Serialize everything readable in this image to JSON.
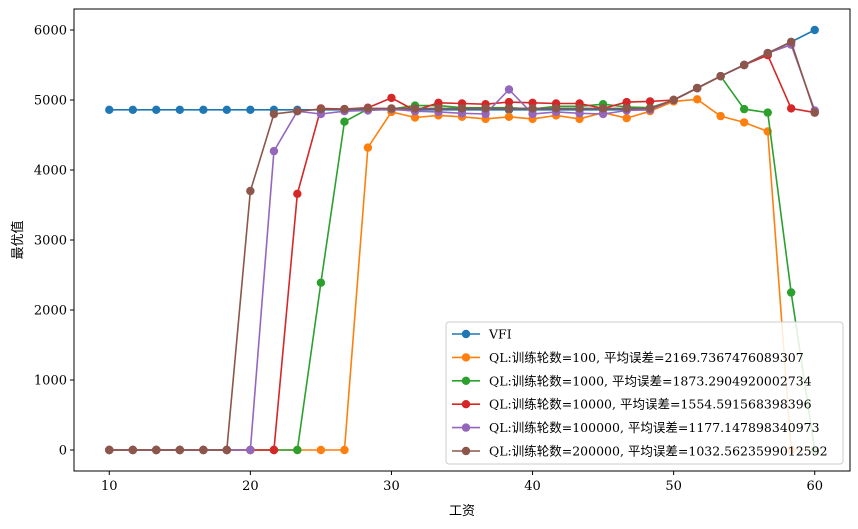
{
  "chart_data": {
    "type": "line",
    "xlabel": "工资",
    "ylabel": "最优值",
    "xlim": [
      7.5,
      62.5
    ],
    "ylim": [
      -300,
      6300
    ],
    "xticks": [
      10,
      20,
      30,
      40,
      50,
      60
    ],
    "yticks": [
      0,
      1000,
      2000,
      3000,
      4000,
      5000,
      6000
    ],
    "grid": false,
    "legend_position": "lower right",
    "x": [
      10,
      11.67,
      13.33,
      15,
      16.67,
      18.33,
      20,
      21.67,
      23.33,
      25,
      26.67,
      28.33,
      30,
      31.67,
      33.33,
      35,
      36.67,
      38.33,
      40,
      41.67,
      43.33,
      45,
      46.67,
      48.33,
      50,
      51.67,
      53.33,
      55,
      56.67,
      58.33,
      60
    ],
    "series": [
      {
        "name": "VFI",
        "color": "#1f77b4",
        "values": [
          4860,
          4860,
          4860,
          4860,
          4860,
          4860,
          4860,
          4860,
          4860,
          4860,
          4860,
          4860,
          4860,
          4860,
          4860,
          4860,
          4860,
          4860,
          4860,
          4860,
          4860,
          4860,
          4860,
          4860,
          5000,
          5170,
          5340,
          5500,
          5670,
          5830,
          6000
        ]
      },
      {
        "name": "QL:训练轮数=100, 平均误差=2169.7367476089307",
        "color": "#ff7f0e",
        "values": [
          0,
          0,
          0,
          0,
          0,
          0,
          0,
          0,
          0,
          0,
          0,
          4320,
          4830,
          4750,
          4780,
          4760,
          4730,
          4760,
          4730,
          4780,
          4730,
          4820,
          4740,
          4840,
          4980,
          5010,
          4770,
          4680,
          4550,
          0,
          0
        ]
      },
      {
        "name": "QL:训练轮数=1000, 平均误差=1873.2904920002734",
        "color": "#2ca02c",
        "values": [
          0,
          0,
          0,
          0,
          0,
          0,
          0,
          0,
          0,
          2390,
          4690,
          4870,
          4870,
          4920,
          4920,
          4890,
          4890,
          4890,
          4870,
          4910,
          4910,
          4940,
          4900,
          4890,
          5000,
          5170,
          5340,
          4870,
          4820,
          2250,
          0
        ]
      },
      {
        "name": "QL:训练轮数=10000, 平均误差=1554.591568398396",
        "color": "#d62728",
        "values": [
          0,
          0,
          0,
          0,
          0,
          0,
          0,
          0,
          3660,
          4880,
          4870,
          4890,
          5030,
          4850,
          4960,
          4950,
          4940,
          4970,
          4960,
          4950,
          4950,
          4880,
          4970,
          4980,
          5000,
          5170,
          5340,
          5500,
          5640,
          4880,
          4820
        ]
      },
      {
        "name": "QL:训练轮数=100000, 平均误差=1177.147898340973",
        "color": "#9467bd",
        "values": [
          0,
          0,
          0,
          0,
          0,
          0,
          0,
          4270,
          4840,
          4800,
          4840,
          4850,
          4870,
          4840,
          4830,
          4810,
          4800,
          5150,
          4800,
          4830,
          4810,
          4800,
          4850,
          4860,
          5000,
          5170,
          5340,
          5500,
          5670,
          5790,
          4850
        ]
      },
      {
        "name": "QL:训练轮数=200000, 平均误差=1032.5623599012592",
        "color": "#8c564b",
        "values": [
          0,
          0,
          0,
          0,
          0,
          0,
          3700,
          4800,
          4840,
          4870,
          4870,
          4880,
          4880,
          4880,
          4880,
          4880,
          4880,
          4880,
          4880,
          4880,
          4880,
          4880,
          4880,
          4880,
          5000,
          5170,
          5340,
          5500,
          5670,
          5830,
          4820
        ]
      }
    ]
  }
}
